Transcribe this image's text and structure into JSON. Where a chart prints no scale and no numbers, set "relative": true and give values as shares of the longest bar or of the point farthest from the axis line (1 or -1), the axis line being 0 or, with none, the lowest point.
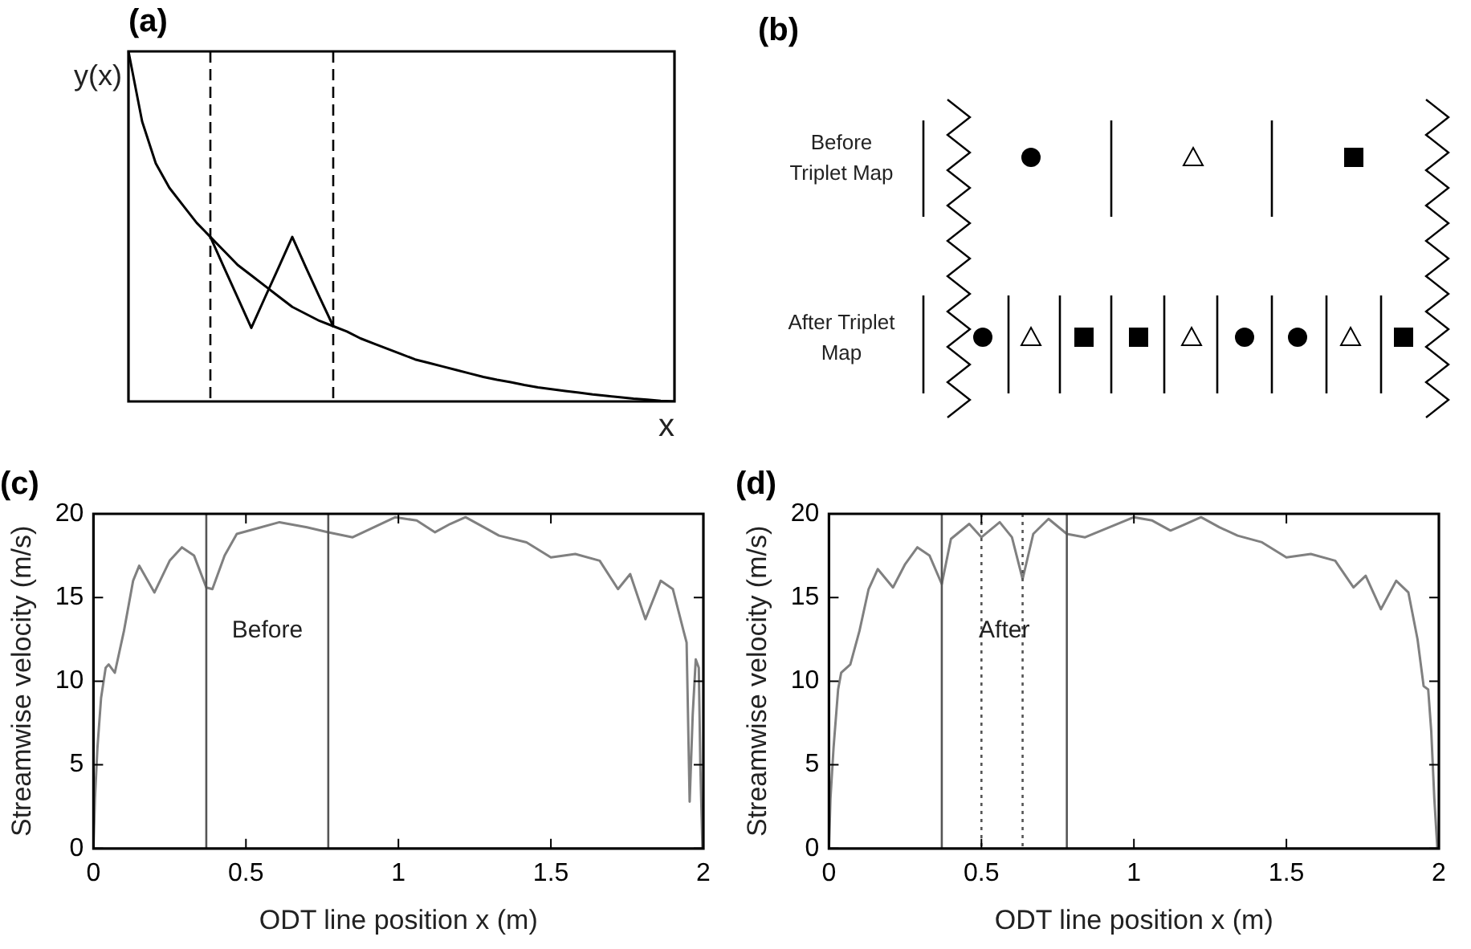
{
  "chart_data": [
    {
      "type": "line",
      "title": "(a)",
      "xlabel": "x",
      "ylabel": "y(x)",
      "relative": true,
      "tick_labels": false,
      "legend": false,
      "grid": false,
      "marker": "none",
      "categories": [
        null,
        null,
        null,
        null,
        null,
        null,
        null,
        null,
        null,
        null,
        null,
        null,
        null,
        null,
        null,
        null,
        null,
        null,
        null,
        null,
        null,
        null,
        null,
        null,
        null,
        null,
        null,
        null,
        null,
        null,
        null,
        null,
        null,
        null,
        null,
        null,
        null,
        null,
        null,
        null,
        null
      ],
      "series": [
        {
          "color": "#000000",
          "values": [
            1,
            0.8,
            0.68,
            0.61,
            0.56,
            0.51,
            0.47,
            0.43,
            0.39,
            0.36,
            0.33,
            0.3,
            0.27,
            0.25,
            0.23,
            0.215,
            0.2,
            0.18,
            0.165,
            0.15,
            0.135,
            0.12,
            0.11,
            0.1,
            0.09,
            0.08,
            0.07,
            0.062,
            0.055,
            0.047,
            0.04,
            0.035,
            0.03,
            0.025,
            0.02,
            0.016,
            0.012,
            0.008,
            0.005,
            0.002,
            0
          ]
        },
        {
          "color": "#000000",
          "values": [
            null,
            null,
            null,
            null,
            null,
            null,
            0.47,
            0.383,
            0.297,
            0.21,
            0.297,
            0.383,
            0.47,
            0.383,
            0.298,
            0.215,
            null,
            null,
            null,
            null,
            null,
            null,
            null,
            null,
            null,
            null,
            null,
            null,
            null,
            null,
            null,
            null,
            null,
            null,
            null,
            null,
            null,
            null,
            null,
            null,
            null
          ]
        }
      ]
    },
    {
      "type": "other",
      "title": "(b)",
      "annotations": [
        "Before Triplet Map",
        "After Triplet Map"
      ]
    },
    {
      "type": "line",
      "title": "(c)",
      "xlabel": "ODT line position x (m)",
      "ylabel": "Streamwise velocity (m/s)",
      "legend": false,
      "grid": false,
      "marker": "none",
      "line_style": "solid",
      "xlim": [
        0,
        2
      ],
      "xticks": [
        0,
        0.5,
        1,
        1.5,
        2
      ],
      "ylim": [
        0,
        20
      ],
      "yticks": [
        0,
        5,
        10,
        15,
        20
      ],
      "series": [
        {
          "color": "#808080",
          "x": [
            0,
            0.005,
            0.013,
            0.025,
            0.04,
            0.05,
            0.07,
            0.1,
            0.13,
            0.15,
            0.2,
            0.25,
            0.29,
            0.33,
            0.37,
            0.39,
            0.43,
            0.47,
            0.53,
            0.61,
            0.7,
            0.77,
            0.85,
            0.92,
            0.99,
            1.06,
            1.12,
            1.17,
            1.22,
            1.28,
            1.33,
            1.42,
            1.5,
            1.58,
            1.66,
            1.72,
            1.76,
            1.81,
            1.86,
            1.9,
            1.935,
            1.945,
            1.955,
            1.965,
            1.975,
            1.985,
            1.99,
            1.997
          ],
          "values": [
            0,
            3,
            6,
            9,
            10.8,
            11,
            10.5,
            13,
            16,
            16.9,
            15.3,
            17.2,
            18,
            17.5,
            15.6,
            15.5,
            17.5,
            18.8,
            19.1,
            19.5,
            19.2,
            18.9,
            18.6,
            19.2,
            19.8,
            19.6,
            18.9,
            19.4,
            19.8,
            19.2,
            18.7,
            18.3,
            17.4,
            17.6,
            17.2,
            15.5,
            16.4,
            13.7,
            16,
            15.5,
            13,
            12.3,
            2.8,
            8,
            11.3,
            10.8,
            5,
            0
          ]
        }
      ],
      "ref_lines": [
        {
          "axis": "x",
          "value": 0.37,
          "line_style": "solid",
          "color": "#555555"
        },
        {
          "axis": "x",
          "value": 0.77,
          "line_style": "solid",
          "color": "#555555"
        }
      ],
      "annotations": [
        "Before"
      ]
    },
    {
      "type": "line",
      "title": "(d)",
      "xlabel": "ODT line position x (m)",
      "ylabel": "Streamwise velocity (m/s)",
      "legend": false,
      "grid": false,
      "marker": "none",
      "line_style": "solid",
      "xlim": [
        0,
        2
      ],
      "xticks": [
        0,
        0.5,
        1,
        1.5,
        2
      ],
      "ylim": [
        0,
        20
      ],
      "yticks": [
        0,
        5,
        10,
        15,
        20
      ],
      "series": [
        {
          "color": "#808080",
          "x": [
            0,
            0.005,
            0.015,
            0.03,
            0.04,
            0.07,
            0.1,
            0.13,
            0.16,
            0.21,
            0.25,
            0.29,
            0.33,
            0.37,
            0.4,
            0.46,
            0.5,
            0.56,
            0.6,
            0.635,
            0.67,
            0.72,
            0.78,
            0.84,
            0.92,
            1,
            1.06,
            1.12,
            1.17,
            1.22,
            1.28,
            1.34,
            1.42,
            1.5,
            1.58,
            1.66,
            1.72,
            1.76,
            1.81,
            1.86,
            1.9,
            1.93,
            1.95,
            1.965,
            1.975,
            1.985,
            1.995
          ],
          "values": [
            0,
            3,
            6,
            9.5,
            10.5,
            11,
            13,
            15.5,
            16.7,
            15.6,
            17,
            18,
            17.5,
            15.8,
            18.5,
            19.4,
            18.6,
            19.5,
            18.6,
            16.1,
            18.8,
            19.7,
            18.8,
            18.6,
            19.2,
            19.8,
            19.6,
            19,
            19.4,
            19.8,
            19.2,
            18.7,
            18.3,
            17.4,
            17.6,
            17.2,
            15.6,
            16.3,
            14.3,
            16,
            15.3,
            12.5,
            9.7,
            9.5,
            7,
            3,
            0
          ]
        }
      ],
      "ref_lines": [
        {
          "axis": "x",
          "value": 0.37,
          "line_style": "solid",
          "color": "#555555"
        },
        {
          "axis": "x",
          "value": 0.78,
          "line_style": "solid",
          "color": "#555555"
        },
        {
          "axis": "x",
          "value": 0.5,
          "line_style": "dotted",
          "color": "#555555"
        },
        {
          "axis": "x",
          "value": 0.635,
          "line_style": "dotted",
          "color": "#555555"
        }
      ],
      "annotations": [
        "After"
      ]
    }
  ]
}
